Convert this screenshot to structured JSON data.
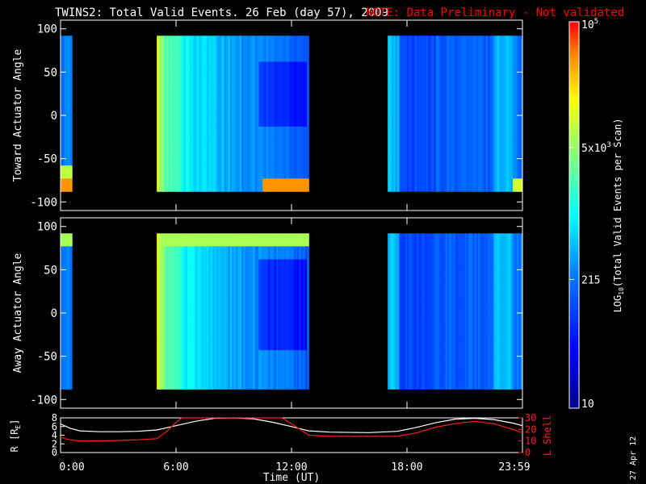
{
  "title": {
    "main": "TWINS2: Total Valid Events. 26 Feb (day  57), 2009",
    "note": "NOTE: Data Preliminary - Not validated"
  },
  "stamp": "27 Apr 12",
  "colors": {
    "background": "#000000",
    "note": "#ff0000",
    "axes": "#ffffff",
    "lshell": "#ff2020",
    "radius": "#ffffff"
  },
  "colorbar": {
    "ticks": [
      "10",
      "215",
      "5x10",
      "10"
    ],
    "tick_exponents": [
      "",
      "",
      "3",
      "5"
    ],
    "label_main": "LOG",
    "label_sub": "10",
    "label_rest": "(Total Valid Events per Scan)",
    "range": [
      10,
      100000
    ],
    "scale": "log"
  },
  "chart_data": [
    {
      "type": "heatmap",
      "ylabel": "Toward Actuator Angle",
      "xlim": [
        0,
        24
      ],
      "ylim": [
        -110,
        110
      ],
      "yticks": [
        "100",
        "50",
        "0",
        "-50",
        "-100"
      ],
      "ytick_values": [
        100,
        50,
        0,
        -50,
        -100
      ],
      "angle_range": [
        -88,
        92
      ],
      "data_blocks_hours": [
        [
          0,
          0.6
        ],
        [
          5.0,
          12.9
        ],
        [
          17.0,
          24.0
        ]
      ],
      "colorscale": "log10 events per scan, 10 to 1e5"
    },
    {
      "type": "heatmap",
      "ylabel": "Away Actuator Angle",
      "xlim": [
        0,
        24
      ],
      "ylim": [
        -110,
        110
      ],
      "yticks": [
        "100",
        "50",
        "0",
        "-50",
        "-100"
      ],
      "ytick_values": [
        100,
        50,
        0,
        -50,
        -100
      ],
      "angle_range": [
        -88,
        92
      ],
      "data_blocks_hours": [
        [
          0,
          0.6
        ],
        [
          5.0,
          12.9
        ],
        [
          17.0,
          24.0
        ]
      ],
      "colorscale": "log10 events per scan, 10 to 1e5"
    },
    {
      "type": "line",
      "xlabel": "Time (UT)",
      "xticks": [
        "0:00",
        "6:00",
        "12:00",
        "18:00",
        "23:59"
      ],
      "xtick_values": [
        0,
        6,
        12,
        18,
        24
      ],
      "ylabel_left": "R [R",
      "ylabel_left_sub": "E",
      "ylabel_left_end": "]",
      "ylabel_right": "L Shell",
      "ylim_left": [
        0,
        8
      ],
      "yticks_left": [
        "8",
        "6",
        "4",
        "2",
        "0"
      ],
      "ylim_right": [
        0,
        30
      ],
      "yticks_right": [
        "30",
        "20",
        "10",
        "0"
      ],
      "series": [
        {
          "name": "R [RE]",
          "axis": "left",
          "x": [
            0,
            0.5,
            1,
            2,
            3,
            4,
            5,
            6,
            7,
            8,
            9,
            10,
            11,
            12,
            12.9,
            14,
            16,
            17.5,
            18.5,
            19.5,
            20.5,
            21.5,
            22.5,
            23.5,
            24
          ],
          "y": [
            6.6,
            5.6,
            5.0,
            4.8,
            4.8,
            4.9,
            5.2,
            6.2,
            7.2,
            7.9,
            8.0,
            7.8,
            7.0,
            6.0,
            5.0,
            4.7,
            4.6,
            4.9,
            5.8,
            6.9,
            7.7,
            7.9,
            7.6,
            6.8,
            6.2
          ]
        },
        {
          "name": "L Shell",
          "axis": "right",
          "x": [
            0,
            0.5,
            1,
            2,
            3,
            4,
            5,
            5.5,
            6.0,
            6.3,
            11.5,
            12.0,
            12.9,
            14,
            16,
            17.5,
            18.5,
            19.5,
            20.5,
            21.5,
            22.5,
            23.5,
            24
          ],
          "y": [
            13,
            11,
            10,
            10,
            10.5,
            11,
            12,
            18,
            26,
            31,
            31,
            25,
            15,
            14,
            14,
            14,
            17,
            22,
            25,
            27,
            25,
            20,
            17
          ]
        }
      ]
    }
  ]
}
